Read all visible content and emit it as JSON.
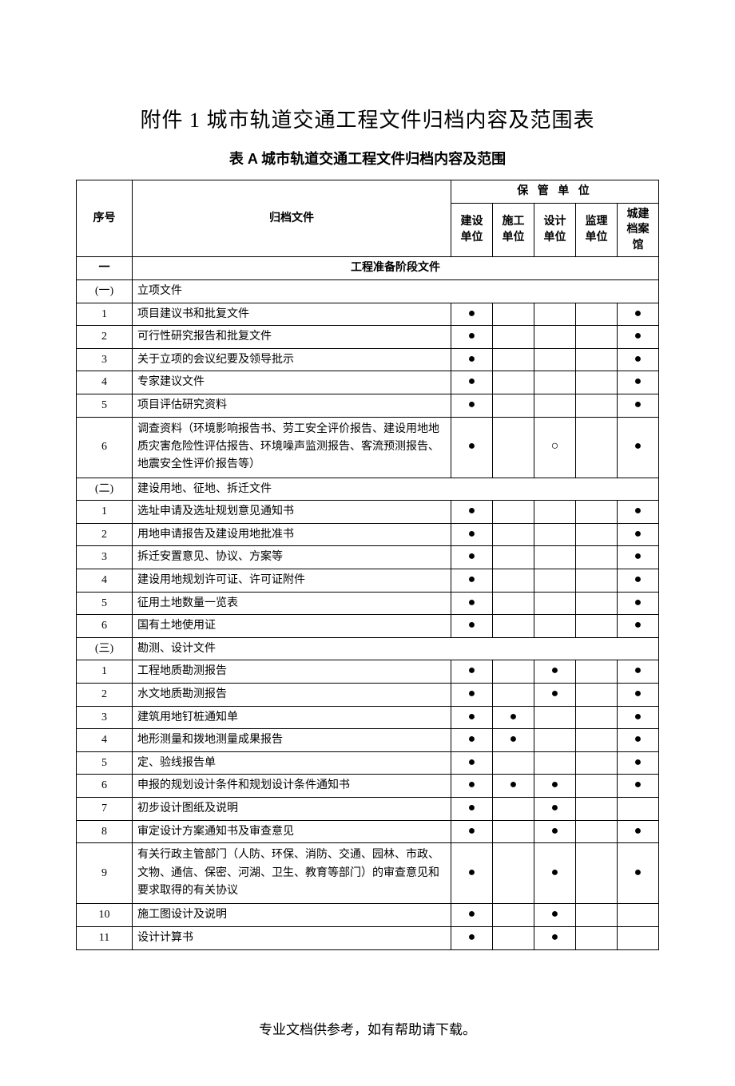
{
  "title1": "附件 1   城市轨道交通工程文件归档内容及范围表",
  "title2": "表 A  城市轨道交通工程文件归档内容及范围",
  "footer": "专业文档供参考，如有帮助请下载。",
  "columns": {
    "seq": "序号",
    "file": "归档文件",
    "storage_header": "保 管 单 位",
    "unit1": "建设单位",
    "unit2": "施工单位",
    "unit3": "设计单位",
    "unit4": "监理单位",
    "unit5": "城建档案馆"
  },
  "marks": {
    "filled": "●",
    "hollow": "○"
  },
  "colors": {
    "text": "#000000",
    "background": "#ffffff",
    "border": "#000000"
  },
  "fonts": {
    "title1_size": 26,
    "title2_size": 18,
    "body_size": 14,
    "footer_size": 17
  },
  "section1": {
    "seq": "一",
    "label": "工程准备阶段文件"
  },
  "sub1": {
    "seq": "(一)",
    "label": "立项文件"
  },
  "rows_sub1": [
    {
      "seq": "1",
      "file": "项目建议书和批复文件",
      "u1": "●",
      "u2": "",
      "u3": "",
      "u4": "",
      "u5": "●"
    },
    {
      "seq": "2",
      "file": "可行性研究报告和批复文件",
      "u1": "●",
      "u2": "",
      "u3": "",
      "u4": "",
      "u5": "●"
    },
    {
      "seq": "3",
      "file": "关于立项的会议纪要及领导批示",
      "u1": "●",
      "u2": "",
      "u3": "",
      "u4": "",
      "u5": "●"
    },
    {
      "seq": "4",
      "file": "专家建议文件",
      "u1": "●",
      "u2": "",
      "u3": "",
      "u4": "",
      "u5": "●"
    },
    {
      "seq": "5",
      "file": "项目评估研究资料",
      "u1": "●",
      "u2": "",
      "u3": "",
      "u4": "",
      "u5": "●"
    },
    {
      "seq": "6",
      "file": "调查资料（环境影响报告书、劳工安全评价报告、建设用地地质灾害危险性评估报告、环境噪声监测报告、客流预测报告、地震安全性评价报告等）",
      "u1": "●",
      "u2": "",
      "u3": "○",
      "u4": "",
      "u5": "●"
    }
  ],
  "sub2": {
    "seq": "(二)",
    "label": "建设用地、征地、拆迁文件"
  },
  "rows_sub2": [
    {
      "seq": "1",
      "file": "选址申请及选址规划意见通知书",
      "u1": "●",
      "u2": "",
      "u3": "",
      "u4": "",
      "u5": "●"
    },
    {
      "seq": "2",
      "file": "用地申请报告及建设用地批准书",
      "u1": "●",
      "u2": "",
      "u3": "",
      "u4": "",
      "u5": "●"
    },
    {
      "seq": "3",
      "file": "拆迁安置意见、协议、方案等",
      "u1": "●",
      "u2": "",
      "u3": "",
      "u4": "",
      "u5": "●"
    },
    {
      "seq": "4",
      "file": "建设用地规划许可证、许可证附件",
      "u1": "●",
      "u2": "",
      "u3": "",
      "u4": "",
      "u5": "●"
    },
    {
      "seq": "5",
      "file": "征用土地数量一览表",
      "u1": "●",
      "u2": "",
      "u3": "",
      "u4": "",
      "u5": "●"
    },
    {
      "seq": "6",
      "file": "国有土地使用证",
      "u1": "●",
      "u2": "",
      "u3": "",
      "u4": "",
      "u5": "●"
    }
  ],
  "sub3": {
    "seq": "(三)",
    "label": "勘测、设计文件"
  },
  "rows_sub3": [
    {
      "seq": "1",
      "file": "工程地质勘测报告",
      "u1": "●",
      "u2": "",
      "u3": "●",
      "u4": "",
      "u5": "●"
    },
    {
      "seq": "2",
      "file": "水文地质勘测报告",
      "u1": "●",
      "u2": "",
      "u3": "●",
      "u4": "",
      "u5": "●"
    },
    {
      "seq": "3",
      "file": "建筑用地钉桩通知单",
      "u1": "●",
      "u2": "●",
      "u3": "",
      "u4": "",
      "u5": "●"
    },
    {
      "seq": "4",
      "file": "地形测量和拨地测量成果报告",
      "u1": "●",
      "u2": "●",
      "u3": "",
      "u4": "",
      "u5": "●"
    },
    {
      "seq": "5",
      "file": "定、验线报告单",
      "u1": "●",
      "u2": "",
      "u3": "",
      "u4": "",
      "u5": "●"
    },
    {
      "seq": "6",
      "file": "申报的规划设计条件和规划设计条件通知书",
      "u1": "●",
      "u2": "●",
      "u3": "●",
      "u4": "",
      "u5": "●"
    },
    {
      "seq": "7",
      "file": "初步设计图纸及说明",
      "u1": "●",
      "u2": "",
      "u3": "●",
      "u4": "",
      "u5": ""
    },
    {
      "seq": "8",
      "file": "审定设计方案通知书及审查意见",
      "u1": "●",
      "u2": "",
      "u3": "●",
      "u4": "",
      "u5": "●"
    },
    {
      "seq": "9",
      "file": "有关行政主管部门（人防、环保、消防、交通、园林、市政、文物、通信、保密、河湖、卫生、教育等部门）的审查意见和要求取得的有关协议",
      "u1": "●",
      "u2": "",
      "u3": "●",
      "u4": "",
      "u5": "●"
    },
    {
      "seq": "10",
      "file": "施工图设计及说明",
      "u1": "●",
      "u2": "",
      "u3": "●",
      "u4": "",
      "u5": ""
    },
    {
      "seq": "11",
      "file": "设计计算书",
      "u1": "●",
      "u2": "",
      "u3": "●",
      "u4": "",
      "u5": ""
    }
  ]
}
